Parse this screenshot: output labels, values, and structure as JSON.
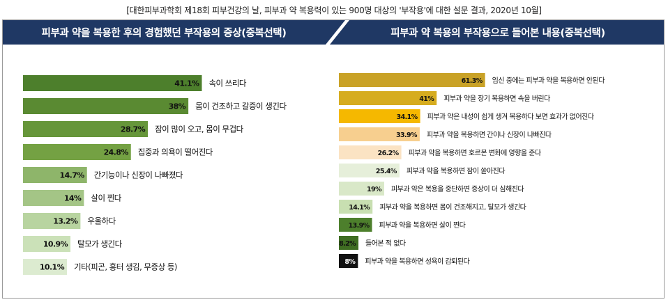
{
  "caption": "[대한피부과학회 제18회 피부건강의 날, 피부과 약 복용력이 있는 900명 대상의 '부작용'에 대한 설문 결과, 2020년 10월]",
  "chart_data": [
    {
      "type": "bar",
      "orientation": "horizontal",
      "title": "피부과 약을 복용한 후의 경험했던 부작용의 증상(중복선택)",
      "xlim": [
        0,
        100
      ],
      "categories": [
        "속이 쓰리다",
        "몸이 건조하고 갈증이 생긴다",
        "잠이 많이 오고, 몸이 무겁다",
        "집중과 의욕이 떨어진다",
        "간기능이나 신장이 나빠졌다",
        "살이 찐다",
        "우울하다",
        "탈모가 생긴다",
        "기타(피곤, 홍터 생김, 무증상 등)"
      ],
      "values": [
        41.1,
        38,
        28.7,
        24.8,
        14.7,
        14,
        13.2,
        10.9,
        10.1
      ],
      "value_labels": [
        "41.1%",
        "38%",
        "28.7%",
        "24.8%",
        "14.7%",
        "14%",
        "13.2%",
        "10.9%",
        "10.1%"
      ],
      "colors": [
        "#4d7f2c",
        "#5a8a32",
        "#66963a",
        "#74a143",
        "#8eb56a",
        "#a4c586",
        "#b8d4a0",
        "#cbe1b8",
        "#dcebd0"
      ]
    },
    {
      "type": "bar",
      "orientation": "horizontal",
      "title": "피부과 약 복용의 부작용으로 들어본 내용(중복선택)",
      "xlim": [
        0,
        100
      ],
      "categories": [
        "임신 중에는 피부과 약을 복용하면 안된다",
        "피부과 약을 장기 복용하면 속을 버린다",
        "피부과 약은 내성이 쉽게 생겨 복용하다 보면 효과가 없어진다",
        "피부과 약을 복용하면 간이나 신장이 나빠진다",
        "피부과 약을 복용하면 호르몬 변화에 영향을 준다",
        "피부과 약을 복용하면 잠이 쏟아진다",
        "피부과 약은 복용을 중단하면 증상이 더 심해진다",
        "피부과 약을 복용하면 몸이 건조해지고, 탈모가 생긴다",
        "피부과 약을 복용하면 살이 찐다",
        "들어본 적 없다",
        "피부과 약을 복용하면 성욕이 감퇴된다"
      ],
      "values": [
        61.3,
        41,
        34.1,
        33.9,
        26.2,
        25.4,
        19,
        14.1,
        13.9,
        8.2,
        8
      ],
      "value_labels": [
        "61.3%",
        "41%",
        "34.1%",
        "33.9%",
        "26.2%",
        "25.4%",
        "19%",
        "14.1%",
        "13.9%",
        "8.2%",
        "8%"
      ],
      "colors": [
        "#c9a227",
        "#d6ac1f",
        "#f5b800",
        "#f7cf8f",
        "#fbe3c3",
        "#e6efda",
        "#d9e8c8",
        "#c8dfb1",
        "#4d7f2c",
        "#3f6d22",
        "#111111"
      ]
    }
  ]
}
